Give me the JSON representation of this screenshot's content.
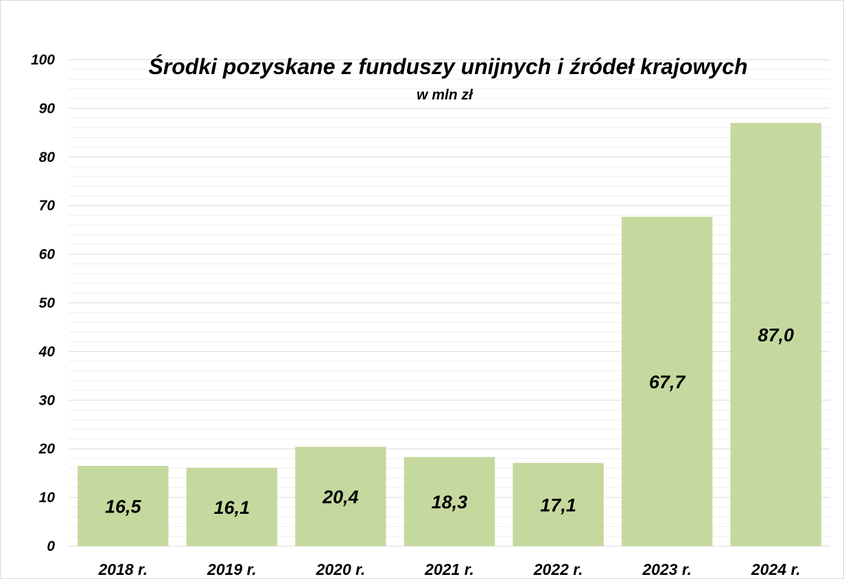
{
  "chart_data": {
    "type": "bar",
    "title": "Środki pozyskane z funduszy unijnych i źródeł krajowych",
    "subtitle": "w mln zł",
    "xlabel": "",
    "ylabel": "",
    "categories": [
      "2018 r.",
      "2019 r.",
      "2020 r.",
      "2021 r.",
      "2022 r.",
      "2023 r.",
      "2024 r."
    ],
    "values": [
      16.5,
      16.1,
      20.4,
      18.3,
      17.1,
      67.7,
      87.0
    ],
    "data_labels": [
      "16,5",
      "16,1",
      "20,4",
      "18,3",
      "17,1",
      "67,7",
      "87,0"
    ],
    "ylim": [
      0,
      100
    ],
    "y_ticks": [
      0,
      10,
      20,
      30,
      40,
      50,
      60,
      70,
      80,
      90,
      100
    ],
    "y_tick_labels": [
      "0",
      "10",
      "20",
      "30",
      "40",
      "50",
      "60",
      "70",
      "80",
      "90",
      "100"
    ],
    "grid": true,
    "legend": "none",
    "colors": {
      "bar": "#c5d99e",
      "major_grid": "#d9d9d9",
      "minor_grid": "#eeeeee",
      "text": "#000000"
    }
  }
}
